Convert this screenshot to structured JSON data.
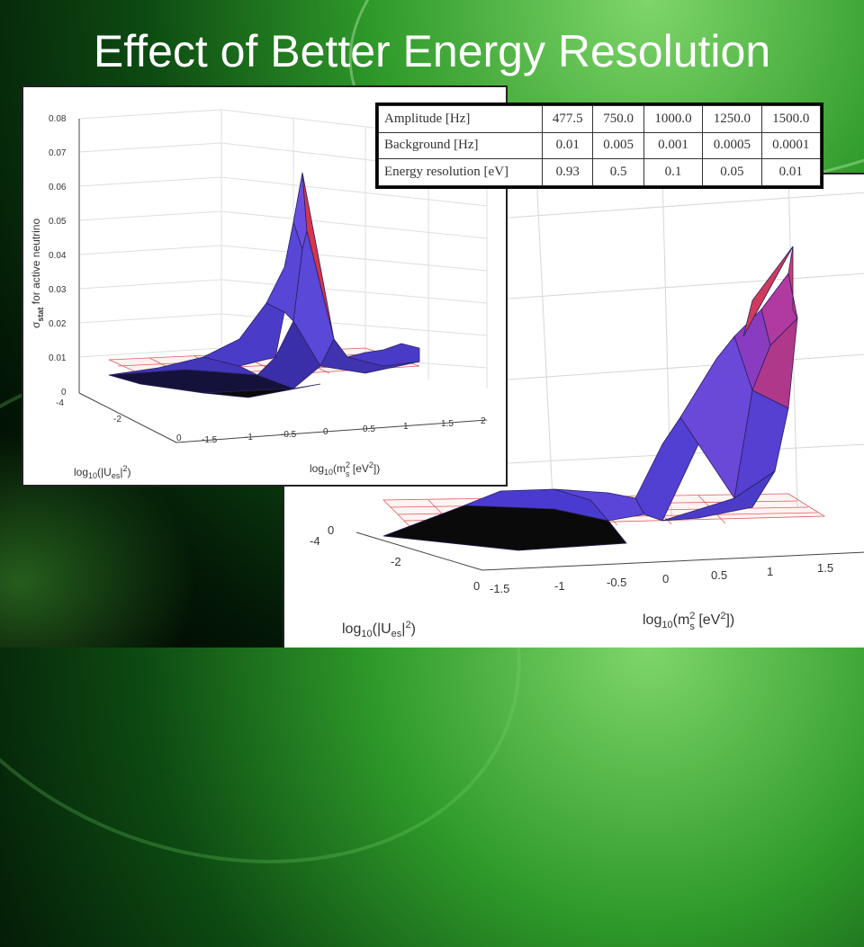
{
  "slide": {
    "title": "Effect of Better Energy Resolution"
  },
  "table": {
    "rows": [
      {
        "label": "Amplitude [Hz]",
        "values": [
          "477.5",
          "750.0",
          "1000.0",
          "1250.0",
          "1500.0"
        ]
      },
      {
        "label": "Background [Hz]",
        "values": [
          "0.01",
          "0.005",
          "0.001",
          "0.0005",
          "0.0001"
        ]
      },
      {
        "label": "Energy resolution [eV]",
        "values": [
          "0.93",
          "0.5",
          "0.1",
          "0.05",
          "0.01"
        ]
      }
    ]
  },
  "colors": {
    "surface_blue": "#4b3dc8",
    "surface_red": "#d8344a",
    "plane_grid": "#e05a5a"
  },
  "chart_data": [
    {
      "type": "surface",
      "title": "",
      "zlabel": "σ_stat for active neutrino",
      "xlabel": "log10(m_s^2 [eV^2])",
      "ylabel": "log10(|U_es|^2)",
      "zlim": [
        0,
        0.08
      ],
      "z_ticks": [
        "0.08",
        "0.07",
        "0.06",
        "0.05",
        "0.04",
        "0.03",
        "0.02",
        "0.01",
        "0"
      ],
      "x_ticks": [
        "-1.5",
        "-1",
        "-0.5",
        "0",
        "0.5",
        "1",
        "1.5",
        "2"
      ],
      "y_ticks": [
        "-4",
        "-2",
        "0"
      ],
      "peak": {
        "x": 0.0,
        "y": -3,
        "z": 0.066
      },
      "reference_plane_z": 0.01,
      "grid": true
    },
    {
      "type": "surface",
      "title": "",
      "xlabel": "log10(m_s^2 [eV^2])",
      "ylabel": "log10(|U_es|^2)",
      "z_ticks": [
        "0"
      ],
      "x_ticks": [
        "-1.5",
        "-1",
        "-0.5",
        "0",
        "0.5",
        "1",
        "1.5"
      ],
      "y_ticks": [
        "-4",
        "-2",
        "0"
      ],
      "grid": true
    }
  ]
}
